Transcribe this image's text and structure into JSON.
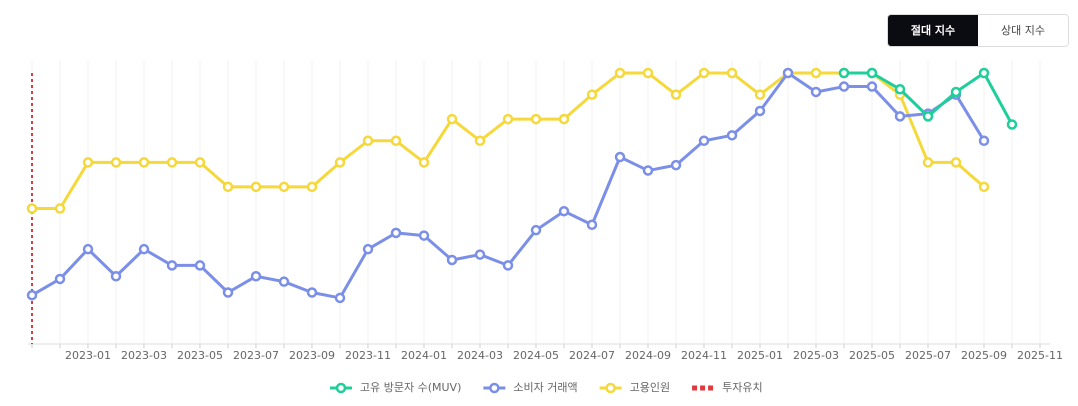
{
  "toggle": {
    "options": [
      "절대 지수",
      "상대 지수"
    ],
    "active": 0
  },
  "chart_data": {
    "type": "line",
    "categories": [
      null,
      null,
      "2023-01",
      null,
      "2023-03",
      null,
      "2023-05",
      null,
      "2023-07",
      null,
      "2023-09",
      null,
      "2023-11",
      null,
      "2024-01",
      null,
      "2024-03",
      null,
      "2024-05",
      null,
      "2024-07",
      null,
      "2024-09",
      null,
      "2024-11",
      null,
      "2025-01",
      null,
      "2025-03",
      null,
      "2025-05",
      null,
      "2025-07",
      null,
      "2025-09",
      null,
      "2025-11"
    ],
    "ylim": [
      0,
      100
    ],
    "grid": true,
    "series": [
      {
        "name": "고유 방문자 수(MUV)",
        "color": "#1fcf9b",
        "values": [
          null,
          null,
          null,
          null,
          null,
          null,
          null,
          null,
          null,
          null,
          null,
          null,
          null,
          null,
          null,
          null,
          null,
          null,
          null,
          null,
          null,
          null,
          null,
          null,
          null,
          null,
          null,
          null,
          null,
          100,
          100,
          94,
          84,
          93,
          100,
          81,
          null
        ]
      },
      {
        "name": "소비자 거래액",
        "color": "#7b8fe8",
        "values": [
          18,
          24,
          35,
          25,
          35,
          29,
          29,
          19,
          25,
          23,
          19,
          17,
          35,
          41,
          40,
          31,
          33,
          29,
          42,
          49,
          44,
          69,
          64,
          66,
          75,
          77,
          86,
          100,
          93,
          95,
          95,
          84,
          85,
          92,
          75,
          null,
          null
        ]
      },
      {
        "name": "고용인원",
        "color": "#f5d83a",
        "values": [
          50,
          50,
          67,
          67,
          67,
          67,
          67,
          58,
          58,
          58,
          58,
          67,
          75,
          75,
          67,
          83,
          75,
          83,
          83,
          83,
          92,
          100,
          100,
          92,
          100,
          100,
          92,
          100,
          100,
          100,
          100,
          92,
          67,
          67,
          58,
          null,
          null
        ]
      }
    ],
    "annotation": {
      "name": "투자유치",
      "index": 0,
      "color": "#e0393e"
    }
  }
}
